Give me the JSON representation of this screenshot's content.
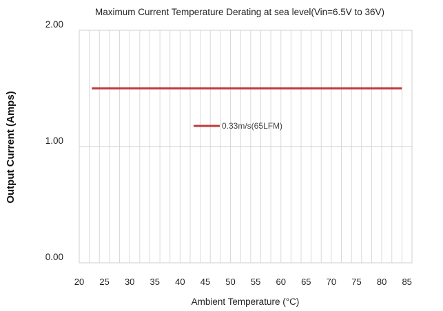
{
  "chart_data": {
    "type": "line",
    "title": "Maximum Current Temperature Derating at sea level(Vin=6.5V to 36V)",
    "xlabel": "Ambient Temperature (°C)",
    "ylabel": "Output Current (Amps)",
    "x_ticks": [
      "20",
      "25",
      "30",
      "35",
      "40",
      "45",
      "50",
      "55",
      "60",
      "65",
      "70",
      "75",
      "80",
      "85"
    ],
    "y_ticks": [
      "0.00",
      "1.00",
      "2.00"
    ],
    "xlim": [
      20,
      86
    ],
    "ylim": [
      0,
      2
    ],
    "grid": true,
    "legend_placement": "center",
    "series": [
      {
        "name": "0.33m/s(65LFM)",
        "color": "#c0393b",
        "x": [
          22.5,
          84
        ],
        "y": [
          1.5,
          1.5
        ]
      }
    ]
  }
}
